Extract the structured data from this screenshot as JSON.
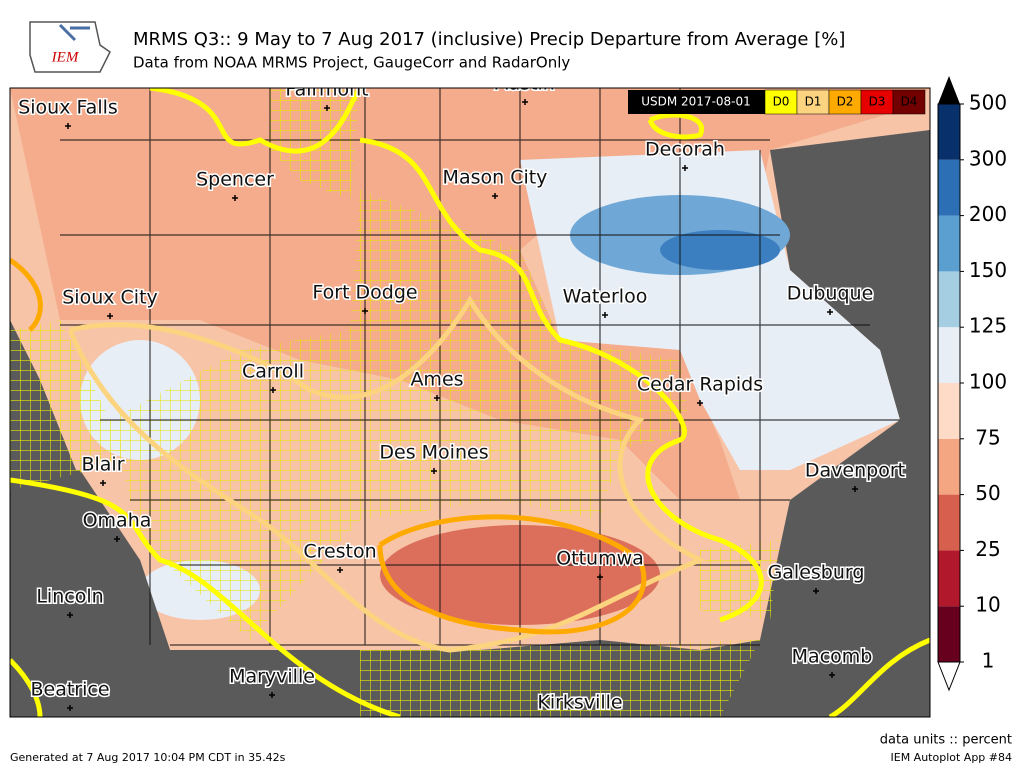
{
  "header": {
    "logo": "IEM",
    "title": "MRMS Q3:: 9 May to 7 Aug 2017 (inclusive) Precip Departure from Average [%]",
    "subtitle": "Data from NOAA MRMS Project, GaugeCorr and RadarOnly"
  },
  "drought_legend": {
    "title": "USDM 2017-08-01",
    "items": [
      {
        "label": "D0",
        "color": "#ffff00"
      },
      {
        "label": "D1",
        "color": "#fcd37f"
      },
      {
        "label": "D2",
        "color": "#ffaa00"
      },
      {
        "label": "D3",
        "color": "#e60000"
      },
      {
        "label": "D4",
        "color": "#730000"
      }
    ]
  },
  "colorbar": {
    "ticks": [
      1,
      10,
      25,
      50,
      75,
      100,
      125,
      150,
      200,
      300,
      500
    ],
    "colors": [
      "#67001f",
      "#b2182b",
      "#d6604d",
      "#f4a582",
      "#fddbc7",
      "#e8eef6",
      "#a6cee3",
      "#5a9fd0",
      "#2c6fb5",
      "#08306b"
    ]
  },
  "cities": [
    "Sioux Falls",
    "Fairmont",
    "Austin",
    "Spencer",
    "Mason City",
    "Decorah",
    "Sioux City",
    "Fort Dodge",
    "Waterloo",
    "Dubuque",
    "Carroll",
    "Ames",
    "Cedar Rapids",
    "Des Moines",
    "Blair",
    "Davenport",
    "Omaha",
    "Creston",
    "Ottumwa",
    "Galesburg",
    "Lincoln",
    "Macomb",
    "Maryville",
    "Beatrice",
    "Kirksville"
  ],
  "footer": {
    "generated": "Generated at 7 Aug 2017 10:04 PM CDT in 35.42s",
    "units": "data units :: percent",
    "app": "IEM Autoplot App #84"
  }
}
